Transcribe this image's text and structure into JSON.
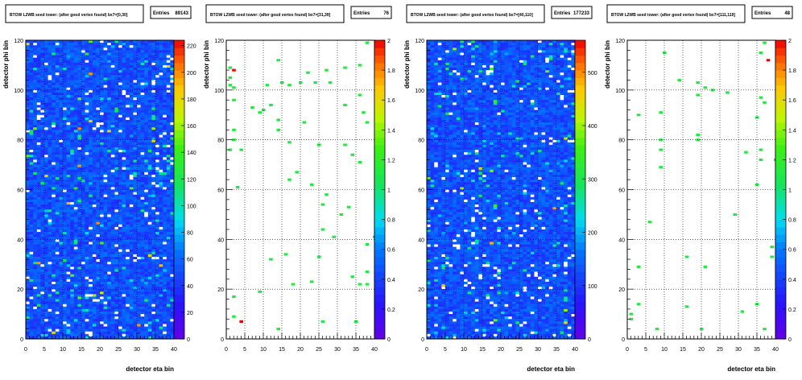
{
  "chart_data": [
    {
      "type": "heatmap",
      "title": "BTOW L2WB seed tower: (after good vertex found) bx7=[0,30]",
      "entries_label": "Entries",
      "entries": "89143",
      "xlabel": "detector eta bin",
      "ylabel": "detector phi bin",
      "xlim": [
        0,
        40
      ],
      "ylim": [
        0,
        120
      ],
      "x_ticks": [
        "0",
        "5",
        "10",
        "15",
        "20",
        "25",
        "30",
        "35",
        "40"
      ],
      "y_ticks": [
        "0",
        "20",
        "40",
        "60",
        "80",
        "100",
        "120"
      ],
      "z_ticks": [
        "0",
        "20",
        "40",
        "60",
        "80",
        "100",
        "120",
        "140",
        "160",
        "180",
        "200",
        "220"
      ],
      "zlim": [
        0,
        224
      ],
      "grid": true,
      "fill": "dense"
    },
    {
      "type": "heatmap",
      "title": "BTOW L2WB seed tower: (after good vertex found) bx7=[31,39]",
      "entries_label": "Entries",
      "entries": "76",
      "xlabel": "",
      "ylabel": "detector phi bin",
      "xlim": [
        0,
        40
      ],
      "ylim": [
        0,
        120
      ],
      "x_ticks": [
        "0",
        "5",
        "10",
        "15",
        "20",
        "25",
        "30",
        "35",
        "40"
      ],
      "y_ticks": [
        "0",
        "20",
        "40",
        "60",
        "80",
        "100",
        "120"
      ],
      "z_ticks": [
        "0",
        "0.2",
        "0.4",
        "0.6",
        "0.8",
        "1",
        "1.2",
        "1.4",
        "1.6",
        "1.8",
        "2"
      ],
      "zlim": [
        0,
        2
      ],
      "grid": true,
      "fill": "sparse",
      "points": [
        [
          38,
          119
        ],
        [
          1,
          109
        ],
        [
          1,
          105
        ],
        [
          1,
          102
        ],
        [
          14,
          112
        ],
        [
          27,
          108
        ],
        [
          36,
          110
        ],
        [
          32,
          109
        ],
        [
          22,
          107
        ],
        [
          20,
          103
        ],
        [
          24,
          103
        ],
        [
          28,
          103
        ],
        [
          11,
          102
        ],
        [
          17,
          102
        ],
        [
          15,
          103
        ],
        [
          2,
          101
        ],
        [
          2,
          96
        ],
        [
          7,
          93
        ],
        [
          9,
          91
        ],
        [
          10,
          92
        ],
        [
          12,
          94
        ],
        [
          14,
          88
        ],
        [
          14,
          84
        ],
        [
          21,
          87
        ],
        [
          32,
          94
        ],
        [
          36,
          98
        ],
        [
          37,
          91
        ],
        [
          38,
          87
        ],
        [
          2,
          84
        ],
        [
          2,
          80
        ],
        [
          1,
          76
        ],
        [
          4,
          76
        ],
        [
          17,
          79
        ],
        [
          25,
          78
        ],
        [
          32,
          78
        ],
        [
          34,
          74
        ],
        [
          36,
          71
        ],
        [
          19,
          67
        ],
        [
          17,
          64
        ],
        [
          3,
          61
        ],
        [
          23,
          62
        ],
        [
          27,
          58
        ],
        [
          26,
          54
        ],
        [
          33,
          53
        ],
        [
          31,
          50
        ],
        [
          26,
          44
        ],
        [
          29,
          41
        ],
        [
          40,
          41
        ],
        [
          38,
          38
        ],
        [
          12,
          32
        ],
        [
          16,
          34
        ],
        [
          25,
          33
        ],
        [
          38,
          27
        ],
        [
          34,
          25
        ],
        [
          18,
          22
        ],
        [
          23,
          23
        ],
        [
          36,
          22
        ],
        [
          38,
          22
        ],
        [
          9,
          19
        ],
        [
          2,
          17
        ],
        [
          2,
          9
        ],
        [
          4,
          7
        ],
        [
          14,
          4
        ],
        [
          26,
          7
        ],
        [
          35,
          7
        ]
      ],
      "hot_points": [
        [
          2,
          108
        ],
        [
          4,
          7
        ]
      ]
    },
    {
      "type": "heatmap",
      "title": "BTOW L2WB seed tower: (after good vertex found) bx7=[40,110]",
      "entries_label": "Entries",
      "entries": "177233",
      "xlabel": "detector eta bin",
      "ylabel": "detector phi bin",
      "xlim": [
        0,
        40
      ],
      "ylim": [
        0,
        120
      ],
      "x_ticks": [
        "0",
        "5",
        "10",
        "15",
        "20",
        "25",
        "30",
        "35",
        "40"
      ],
      "y_ticks": [
        "0",
        "20",
        "40",
        "60",
        "80",
        "100",
        "120"
      ],
      "z_ticks": [
        "0",
        "100",
        "200",
        "300",
        "400",
        "500"
      ],
      "zlim": [
        0,
        560
      ],
      "grid": true,
      "fill": "dense"
    },
    {
      "type": "heatmap",
      "title": "BTOW L2WB seed tower: (after good vertex found) bx7=[111,119]",
      "entries_label": "Entries",
      "entries": "48",
      "xlabel": "detector eta bin",
      "ylabel": "detector phi bin",
      "xlim": [
        0,
        40
      ],
      "ylim": [
        0,
        120
      ],
      "x_ticks": [
        "0",
        "5",
        "10",
        "15",
        "20",
        "25",
        "30",
        "35",
        "40"
      ],
      "y_ticks": [
        "0",
        "20",
        "40",
        "60",
        "80",
        "100",
        "120"
      ],
      "z_ticks": [
        "0",
        "0.2",
        "0.4",
        "0.6",
        "0.8",
        "1",
        "1.2",
        "1.4",
        "1.6",
        "1.8",
        "2"
      ],
      "zlim": [
        0,
        2
      ],
      "grid": true,
      "fill": "sparse",
      "points": [
        [
          37,
          119
        ],
        [
          36,
          115
        ],
        [
          10,
          115
        ],
        [
          14,
          104
        ],
        [
          19,
          103
        ],
        [
          21,
          101
        ],
        [
          19,
          98
        ],
        [
          23,
          100
        ],
        [
          27,
          99
        ],
        [
          36,
          97
        ],
        [
          37,
          95
        ],
        [
          3,
          90
        ],
        [
          9,
          91
        ],
        [
          19,
          82
        ],
        [
          19,
          80
        ],
        [
          9,
          80
        ],
        [
          9,
          76
        ],
        [
          9,
          69
        ],
        [
          36,
          76
        ],
        [
          32,
          75
        ],
        [
          36,
          72
        ],
        [
          35,
          62
        ],
        [
          40,
          72
        ],
        [
          29,
          50
        ],
        [
          6,
          47
        ],
        [
          16,
          33
        ],
        [
          21,
          29
        ],
        [
          39,
          37
        ],
        [
          3,
          29
        ],
        [
          3,
          14
        ],
        [
          1,
          10
        ],
        [
          1,
          8
        ],
        [
          8,
          4
        ],
        [
          16,
          13
        ],
        [
          20,
          4
        ],
        [
          31,
          11
        ],
        [
          35,
          14
        ],
        [
          37,
          4
        ],
        [
          35,
          89
        ],
        [
          39,
          33
        ]
      ],
      "hot_points": [
        [
          38,
          112
        ]
      ]
    }
  ]
}
